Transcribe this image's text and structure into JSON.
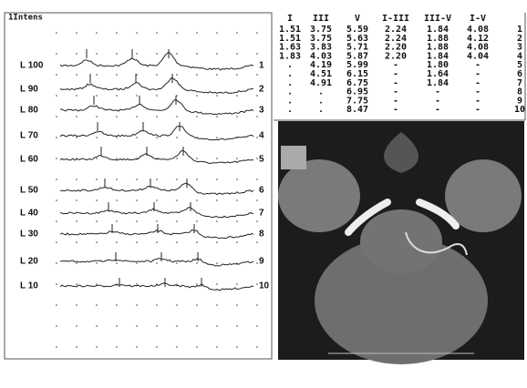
{
  "panel": {
    "title": "1Intens",
    "levels": [
      {
        "label": "L 100",
        "trace": "1"
      },
      {
        "label": "L 90",
        "trace": "2"
      },
      {
        "label": "L 80",
        "trace": "3"
      },
      {
        "label": "L 70",
        "trace": "4"
      },
      {
        "label": "L 60",
        "trace": "5"
      },
      {
        "label": "L 50",
        "trace": "6"
      },
      {
        "label": "L 40",
        "trace": "7"
      },
      {
        "label": "L 30",
        "trace": "8"
      },
      {
        "label": "L 20",
        "trace": "9"
      },
      {
        "label": "L 10",
        "trace": "10"
      }
    ]
  },
  "table": {
    "header": [
      "I",
      "III",
      "V",
      "I-III",
      "III-V",
      "I-V"
    ],
    "rows": [
      [
        "1.51",
        "3.75",
        "5.59",
        "2.24",
        "1.84",
        "4.08",
        "1"
      ],
      [
        "1.51",
        "3.75",
        "5.63",
        "2.24",
        "1.88",
        "4.12",
        "2"
      ],
      [
        "1.63",
        "3.83",
        "5.71",
        "2.20",
        "1.88",
        "4.08",
        "3"
      ],
      [
        "1.83",
        "4.03",
        "5.87",
        "2.20",
        "1.84",
        "4.04",
        "4"
      ],
      [
        ".",
        "4.19",
        "5.99",
        "-",
        "1.80",
        "-",
        "5"
      ],
      [
        ".",
        "4.51",
        "6.15",
        "-",
        "1.64",
        "-",
        "6"
      ],
      [
        ".",
        "4.91",
        "6.75",
        "-",
        "1.84",
        "-",
        "7"
      ],
      [
        ".",
        ".",
        "6.95",
        "-",
        "-",
        "-",
        "8"
      ],
      [
        ".",
        ".",
        "7.75",
        "-",
        "-",
        "-",
        "9"
      ],
      [
        ".",
        ".",
        "8.47",
        "-",
        "-",
        "-",
        "10"
      ]
    ]
  }
}
